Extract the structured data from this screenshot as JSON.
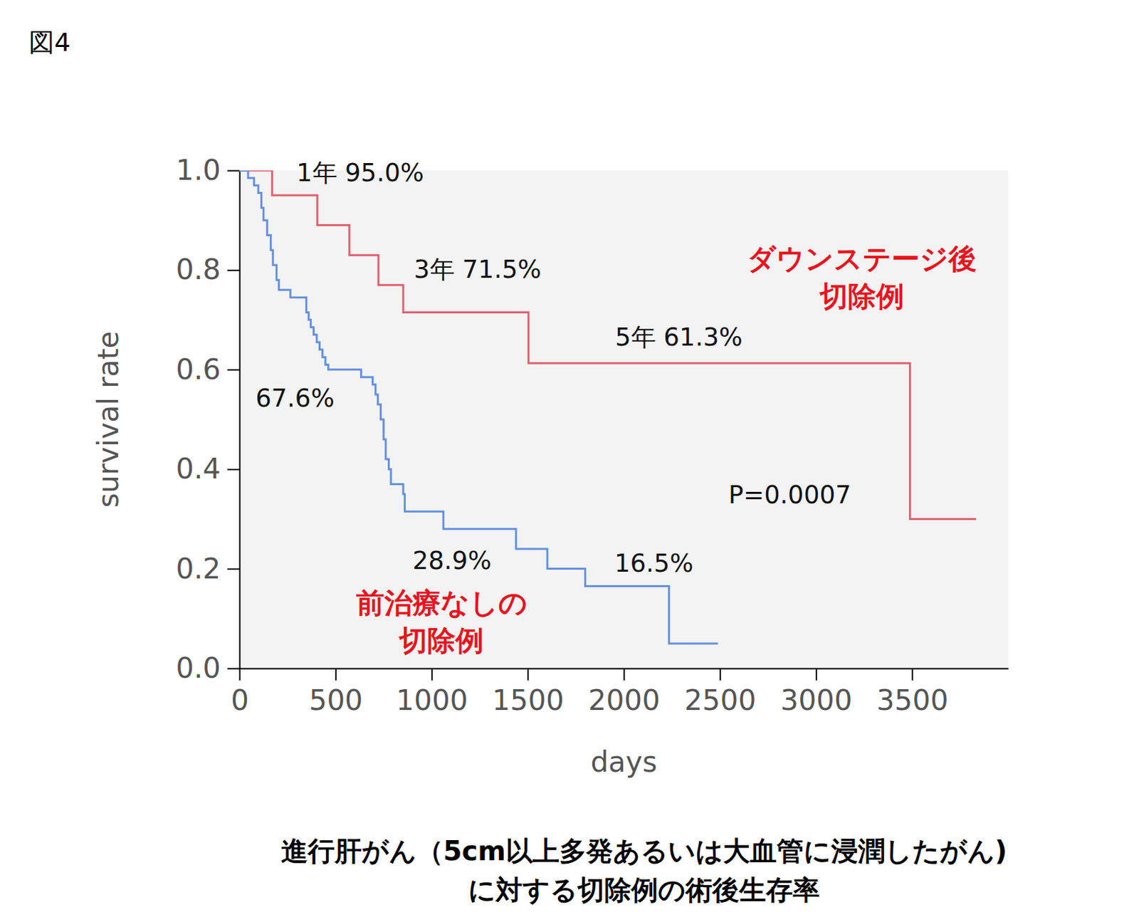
{
  "chart_data": {
    "type": "step",
    "figure_label": "図4",
    "title": "進行肝がん（5cm以上多発あるいは大血管に浸潤したがん)\nに対する切除例の術後生存率",
    "x_label": "days",
    "y_label": "survival rate",
    "xlim": [
      0,
      4000
    ],
    "xticks": [
      0,
      500,
      1000,
      1500,
      2000,
      2500,
      3000,
      3500
    ],
    "ylim": [
      0,
      1
    ],
    "yticks": [
      {
        "value": 0,
        "label": "0.0"
      },
      0.2,
      0.4,
      0.6,
      0.8,
      {
        "value": 1,
        "label": "1.0"
      }
    ],
    "series": [
      {
        "name": "ダウンステージ後\n切除例",
        "color": "#e0606e",
        "x": [
          0,
          170,
          405,
          572,
          723,
          852,
          1504,
          3489,
          3833
        ],
        "values": [
          1,
          0.95,
          0.89,
          0.83,
          0.77,
          0.715,
          0.613,
          0.3,
          0.3
        ]
      },
      {
        "name": "前治療なしの\n切除例",
        "color": "#6390e0",
        "x": [
          0,
          45,
          76,
          98,
          114,
          125,
          144,
          163,
          174,
          193,
          205,
          265,
          348,
          360,
          371,
          386,
          402,
          417,
          432,
          447,
          462,
          633,
          693,
          708,
          720,
          735,
          750,
          761,
          777,
          788,
          852,
          860,
          1061,
          1439,
          1602,
          1799,
          2235,
          2490
        ],
        "values": [
          1,
          0.985,
          0.97,
          0.955,
          0.925,
          0.9,
          0.87,
          0.84,
          0.81,
          0.78,
          0.76,
          0.745,
          0.715,
          0.7,
          0.685,
          0.67,
          0.655,
          0.64,
          0.625,
          0.61,
          0.6,
          0.585,
          0.57,
          0.55,
          0.53,
          0.5,
          0.46,
          0.42,
          0.4,
          0.37,
          0.35,
          0.315,
          0.28,
          0.24,
          0.2,
          0.165,
          0.05,
          0.05
        ]
      }
    ],
    "annotations": [
      "1年 95.0%",
      "3年 71.5%",
      "5年 61.3%",
      "67.6%",
      "28.9%",
      "16.5%",
      "P=0.0007"
    ]
  }
}
